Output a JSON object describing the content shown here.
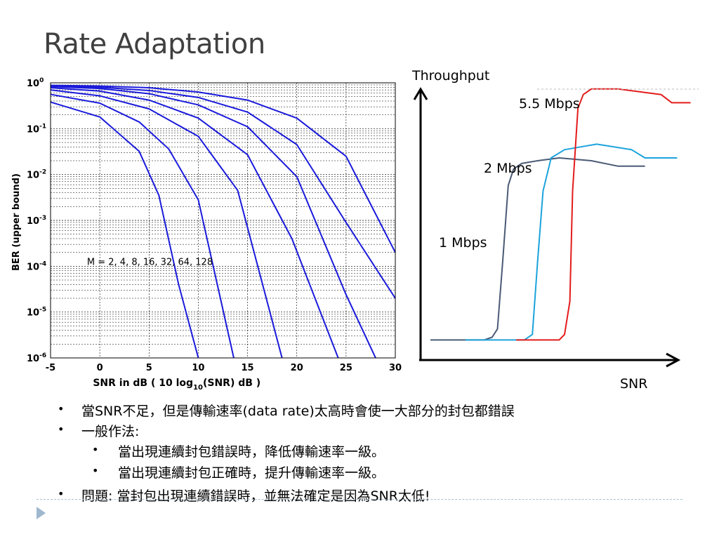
{
  "slide": {
    "title": "Rate Adaptation",
    "bullets": [
      {
        "level": 1,
        "text": "當SNR不足，但是傳輸速率(data rate)太高時會使一大部分的封包都錯誤"
      },
      {
        "level": 1,
        "text": "一般作法:"
      },
      {
        "level": 2,
        "text": "當出現連續封包錯誤時，降低傳輸速率一級。"
      },
      {
        "level": 2,
        "text": "當出現連續封包正確時，提升傳輸速率一級。"
      },
      {
        "level": 1,
        "text": "問題: 當封包出現連續錯誤時，並無法確定是因為SNR太低!"
      }
    ]
  },
  "chart_data": [
    {
      "type": "line",
      "title": "",
      "xlabel": "SNR  in  dB  ( 10 log10(SNR)  dB )",
      "ylabel": "BER  (upper  bound)",
      "xlim": [
        -5,
        30
      ],
      "ylim": [
        1e-06,
        1
      ],
      "yscale": "log",
      "grid": true,
      "xticks": [
        "-5",
        "0",
        "5",
        "10",
        "15",
        "20",
        "25",
        "30"
      ],
      "yticks": [
        "10^0",
        "10^-1",
        "10^-2",
        "10^-3",
        "10^-4",
        "10^-5",
        "10^-6"
      ],
      "annotation": "M = 2, 4, 8, 16, 32, 64, 128",
      "series": [
        {
          "x": [
            -5,
            0,
            4,
            6,
            8,
            10
          ],
          "y": [
            0.38,
            0.18,
            0.032,
            0.0035,
            4e-05,
            1e-06
          ]
        },
        {
          "x": [
            -5,
            0,
            4,
            7,
            10,
            13.6
          ],
          "y": [
            0.56,
            0.36,
            0.14,
            0.036,
            0.0028,
            1e-06
          ]
        },
        {
          "x": [
            -5,
            0,
            5,
            10,
            14,
            18.5
          ],
          "y": [
            0.7,
            0.52,
            0.27,
            0.068,
            0.0045,
            1e-06
          ]
        },
        {
          "x": [
            -5,
            0,
            5,
            10,
            15,
            19.5,
            24.2
          ],
          "y": [
            0.78,
            0.66,
            0.42,
            0.17,
            0.027,
            0.0004,
            1e-06
          ]
        },
        {
          "x": [
            -5,
            0,
            5,
            10,
            15,
            20,
            25,
            28
          ],
          "y": [
            0.83,
            0.75,
            0.58,
            0.33,
            0.11,
            0.009,
            2.4e-05,
            1e-06
          ]
        },
        {
          "x": [
            -5,
            0,
            5,
            10,
            15,
            20,
            25,
            30
          ],
          "y": [
            0.86,
            0.8,
            0.68,
            0.48,
            0.23,
            0.045,
            0.0009,
            2e-05
          ]
        },
        {
          "x": [
            -5,
            0,
            5,
            10,
            15,
            20,
            25,
            30
          ],
          "y": [
            0.88,
            0.85,
            0.78,
            0.63,
            0.42,
            0.17,
            0.025,
            0.0002
          ]
        }
      ],
      "color": "#1a1adb"
    },
    {
      "type": "line",
      "title": "",
      "xlabel": "SNR",
      "ylabel": "Throughput",
      "note": "qualitative sketch, no numeric ticks",
      "series": [
        {
          "name": "1 Mbps",
          "color": "#4a5a75",
          "x": [
            0.0,
            0.2,
            0.23,
            0.25,
            0.27,
            0.29,
            0.31,
            0.34,
            0.4,
            0.48,
            0.6,
            0.7,
            0.8
          ],
          "y": [
            0.06,
            0.06,
            0.07,
            0.1,
            0.35,
            0.62,
            0.68,
            0.7,
            0.71,
            0.72,
            0.71,
            0.69,
            0.69
          ]
        },
        {
          "name": "2 Mbps",
          "color": "#1ca3dc",
          "x": [
            0.13,
            0.35,
            0.38,
            0.4,
            0.42,
            0.45,
            0.5,
            0.56,
            0.62,
            0.75,
            0.8,
            0.92
          ],
          "y": [
            0.06,
            0.06,
            0.08,
            0.35,
            0.6,
            0.72,
            0.75,
            0.76,
            0.77,
            0.75,
            0.72,
            0.72
          ]
        },
        {
          "name": "5.5 Mbps",
          "color": "#e31b1b",
          "x": [
            0.32,
            0.48,
            0.5,
            0.52,
            0.53,
            0.55,
            0.57,
            0.6,
            0.7,
            0.86,
            0.9,
            0.97
          ],
          "y": [
            0.06,
            0.06,
            0.08,
            0.2,
            0.6,
            0.9,
            0.95,
            0.97,
            0.97,
            0.95,
            0.92,
            0.92
          ]
        }
      ]
    }
  ]
}
